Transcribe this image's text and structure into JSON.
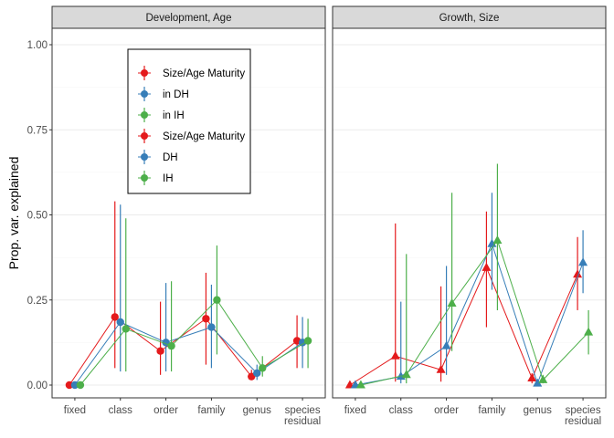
{
  "chart_data": {
    "type": "scatter",
    "ylabel": "Prop. var. explained",
    "ylim": [
      0,
      1.0
    ],
    "yticks": [
      "0.00",
      "0.25",
      "0.50",
      "0.75",
      "1.00"
    ],
    "ytick_values": [
      0,
      0.25,
      0.5,
      0.75,
      1.0
    ],
    "categories": [
      "fixed",
      "class",
      "order",
      "family",
      "genus",
      "species\nresidual"
    ],
    "grid": true,
    "legend_position": "inside top-left of first panel",
    "panels": [
      {
        "title": "Development, Age",
        "series": [
          {
            "name": "Size/Age Maturity",
            "color": "#E41A1C",
            "marker": "circle",
            "values": [
              0.0,
              0.2,
              0.1,
              0.195,
              0.025,
              0.13
            ],
            "lower": [
              0.0,
              0.05,
              0.03,
              0.06,
              0.015,
              0.05
            ],
            "upper": [
              0.0,
              0.54,
              0.245,
              0.33,
              0.045,
              0.205
            ]
          },
          {
            "name": "DH",
            "color": "#377EB8",
            "marker": "circle",
            "values": [
              0.0,
              0.185,
              0.125,
              0.17,
              0.035,
              0.125
            ],
            "lower": [
              0.0,
              0.04,
              0.04,
              0.05,
              0.015,
              0.05
            ],
            "upper": [
              0.0,
              0.53,
              0.3,
              0.295,
              0.06,
              0.2
            ]
          },
          {
            "name": "IH",
            "color": "#4DAF4A",
            "marker": "circle",
            "values": [
              0.0,
              0.165,
              0.115,
              0.25,
              0.05,
              0.13
            ],
            "lower": [
              0.0,
              0.04,
              0.04,
              0.09,
              0.025,
              0.05
            ],
            "upper": [
              0.0,
              0.49,
              0.305,
              0.41,
              0.085,
              0.195
            ]
          }
        ]
      },
      {
        "title": "Growth, Size",
        "series": [
          {
            "name": "Size/Age Maturity",
            "color": "#E41A1C",
            "marker": "triangle",
            "values": [
              0.0,
              0.085,
              0.045,
              0.345,
              0.02,
              0.325
            ],
            "lower": [
              0.0,
              0.01,
              0.01,
              0.17,
              0.005,
              0.22
            ],
            "upper": [
              0.0,
              0.475,
              0.29,
              0.51,
              0.035,
              0.435
            ]
          },
          {
            "name": "DH",
            "color": "#377EB8",
            "marker": "triangle",
            "values": [
              0.0,
              0.025,
              0.115,
              0.415,
              0.005,
              0.36
            ],
            "lower": [
              0.0,
              0.005,
              0.03,
              0.28,
              0.0,
              0.27
            ],
            "upper": [
              0.0,
              0.245,
              0.35,
              0.565,
              0.015,
              0.455
            ]
          },
          {
            "name": "IH",
            "color": "#4DAF4A",
            "marker": "triangle",
            "values": [
              0.0,
              0.03,
              0.24,
              0.425,
              0.015,
              0.155
            ],
            "lower": [
              0.0,
              0.005,
              0.1,
              0.22,
              0.005,
              0.09
            ],
            "upper": [
              0.0,
              0.385,
              0.565,
              0.65,
              0.03,
              0.22
            ]
          }
        ]
      }
    ],
    "legend": [
      {
        "label": "Size/Age Maturity",
        "color": "#E41A1C"
      },
      {
        "label": "in DH",
        "color": "#377EB8"
      },
      {
        "label": "in IH",
        "color": "#4DAF4A"
      },
      {
        "label": "Size/Age Maturity",
        "color": "#E41A1C"
      },
      {
        "label": "DH",
        "color": "#377EB8"
      },
      {
        "label": "IH",
        "color": "#4DAF4A"
      }
    ]
  }
}
